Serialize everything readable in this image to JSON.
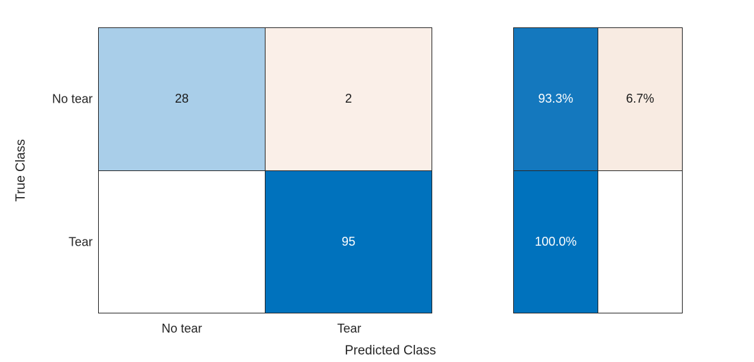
{
  "chart_data": {
    "type": "heatmap",
    "subtype": "confusion-matrix",
    "title": "",
    "xlabel": "Predicted Class",
    "ylabel": "True Class",
    "classes": [
      "No tear",
      "Tear"
    ],
    "x_tick_labels": [
      "No tear",
      "Tear"
    ],
    "y_tick_labels": [
      "No tear",
      "Tear"
    ],
    "counts": [
      [
        28,
        2
      ],
      [
        0,
        95
      ]
    ],
    "row_normalized_percent": [
      [
        93.3,
        6.7
      ],
      [
        0.0,
        100.0
      ]
    ],
    "row_summary_position": "right",
    "legend_position": "none",
    "grid": "cell-borders",
    "colors": {
      "diagonal_full_blue": "#0072BD",
      "diagonal_light_blue": "#A9CEE9",
      "summary_blue": "#1478BE",
      "offdiagonal_peach_light": "#FAEFE8",
      "offdiagonal_peach": "#F8EBE2",
      "empty_cell": "#FFFFFF",
      "cell_border": "#262626",
      "text_dark": "#1A1A1A",
      "text_light": "#FFFFFF"
    },
    "matrix_cells": [
      {
        "value": "28",
        "style": "background:#A9CEE9;color:#1A1A1A"
      },
      {
        "value": "2",
        "style": "background:#FAEFE8;color:#1A1A1A"
      },
      {
        "value": "",
        "style": "background:#FFFFFF;color:#1A1A1A"
      },
      {
        "value": "95",
        "style": "background:#0072BD;color:#FFFFFF"
      }
    ],
    "row_summary_cells": [
      {
        "value": "93.3%",
        "style": "background:#1478BE;color:#FFFFFF"
      },
      {
        "value": "6.7%",
        "style": "background:#F8EBE2;color:#1A1A1A"
      },
      {
        "value": "100.0%",
        "style": "background:#0072BD;color:#FFFFFF"
      },
      {
        "value": "",
        "style": "background:#FFFFFF;color:#1A1A1A"
      }
    ]
  }
}
